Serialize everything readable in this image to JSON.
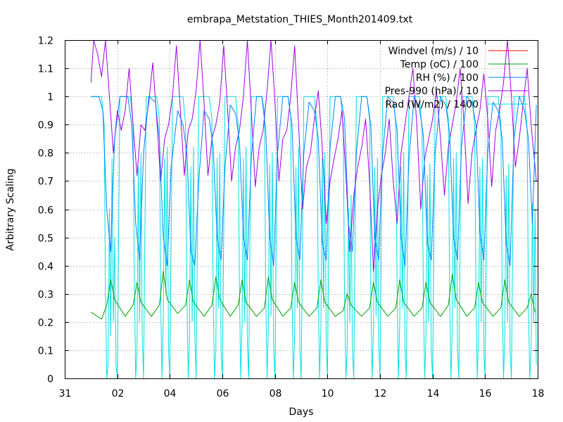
{
  "chart_data": {
    "type": "line",
    "title": "embrapa_Metstation_THIES_Month201409.txt",
    "xlabel": "Days",
    "ylabel": "Arbitrary Scaling",
    "xlim": [
      0,
      18
    ],
    "ylim": [
      0,
      1.2
    ],
    "grid": true,
    "legend_position": "top-right",
    "x_ticks": [
      {
        "value": 0,
        "label": "31"
      },
      {
        "value": 2,
        "label": "02"
      },
      {
        "value": 4,
        "label": "04"
      },
      {
        "value": 6,
        "label": "06"
      },
      {
        "value": 8,
        "label": "08"
      },
      {
        "value": 10,
        "label": "10"
      },
      {
        "value": 12,
        "label": "12"
      },
      {
        "value": 14,
        "label": "14"
      },
      {
        "value": 16,
        "label": "16"
      },
      {
        "value": 18,
        "label": "18"
      }
    ],
    "y_ticks": [
      {
        "value": 0,
        "label": "0"
      },
      {
        "value": 0.1,
        "label": "0.1"
      },
      {
        "value": 0.2,
        "label": "0.2"
      },
      {
        "value": 0.3,
        "label": "0.3"
      },
      {
        "value": 0.4,
        "label": "0.4"
      },
      {
        "value": 0.5,
        "label": "0.5"
      },
      {
        "value": 0.6,
        "label": "0.6"
      },
      {
        "value": 0.7,
        "label": "0.7"
      },
      {
        "value": 0.8,
        "label": "0.8"
      },
      {
        "value": 0.9,
        "label": "0.9"
      },
      {
        "value": 1,
        "label": "1"
      },
      {
        "value": 1.1,
        "label": "1.1"
      },
      {
        "value": 1.2,
        "label": "1.2"
      }
    ],
    "series": [
      {
        "name": "Windvel (m/s) / 10",
        "color": "#ff0000",
        "x": [],
        "y": []
      },
      {
        "name": "Temp (oC) / 100",
        "color": "#00a000",
        "x": [
          1.0,
          1.4,
          1.6,
          1.75,
          1.9,
          2.3,
          2.6,
          2.75,
          2.9,
          3.3,
          3.6,
          3.75,
          3.9,
          4.3,
          4.6,
          4.75,
          4.9,
          5.3,
          5.6,
          5.75,
          5.9,
          6.3,
          6.6,
          6.75,
          6.9,
          7.3,
          7.6,
          7.75,
          7.9,
          8.3,
          8.6,
          8.75,
          8.9,
          9.3,
          9.6,
          9.75,
          9.9,
          10.3,
          10.6,
          10.75,
          10.9,
          11.3,
          11.6,
          11.75,
          11.9,
          12.3,
          12.6,
          12.75,
          12.9,
          13.3,
          13.6,
          13.75,
          13.9,
          14.3,
          14.6,
          14.75,
          14.9,
          15.3,
          15.6,
          15.75,
          15.9,
          16.3,
          16.6,
          16.75,
          16.9,
          17.3,
          17.6,
          17.75,
          17.9
        ],
        "y": [
          0.235,
          0.21,
          0.26,
          0.35,
          0.28,
          0.22,
          0.26,
          0.34,
          0.27,
          0.22,
          0.26,
          0.38,
          0.28,
          0.23,
          0.26,
          0.35,
          0.27,
          0.22,
          0.26,
          0.36,
          0.28,
          0.22,
          0.26,
          0.35,
          0.27,
          0.22,
          0.25,
          0.36,
          0.28,
          0.22,
          0.25,
          0.34,
          0.27,
          0.22,
          0.25,
          0.35,
          0.27,
          0.22,
          0.24,
          0.3,
          0.26,
          0.22,
          0.25,
          0.34,
          0.27,
          0.22,
          0.25,
          0.35,
          0.27,
          0.22,
          0.25,
          0.34,
          0.27,
          0.22,
          0.26,
          0.37,
          0.28,
          0.22,
          0.25,
          0.34,
          0.27,
          0.22,
          0.25,
          0.35,
          0.27,
          0.22,
          0.25,
          0.3,
          0.235
        ]
      },
      {
        "name": "RH (%) / 100",
        "color": "#0080ff",
        "x": [
          1.0,
          1.3,
          1.45,
          1.6,
          1.75,
          1.9,
          2.1,
          2.4,
          2.55,
          2.7,
          2.85,
          3.0,
          3.2,
          3.45,
          3.6,
          3.75,
          3.9,
          4.05,
          4.3,
          4.5,
          4.65,
          4.8,
          4.95,
          5.1,
          5.3,
          5.5,
          5.65,
          5.8,
          5.95,
          6.1,
          6.3,
          6.5,
          6.65,
          6.8,
          6.95,
          7.1,
          7.3,
          7.5,
          7.65,
          7.8,
          7.95,
          8.1,
          8.3,
          8.5,
          8.65,
          8.8,
          8.95,
          9.1,
          9.3,
          9.5,
          9.65,
          9.8,
          9.95,
          10.1,
          10.3,
          10.5,
          10.65,
          10.8,
          10.95,
          11.1,
          11.3,
          11.5,
          11.65,
          11.8,
          11.95,
          12.1,
          12.3,
          12.5,
          12.65,
          12.8,
          12.95,
          13.1,
          13.3,
          13.5,
          13.65,
          13.8,
          13.95,
          14.1,
          14.3,
          14.5,
          14.65,
          14.8,
          14.95,
          15.1,
          15.3,
          15.5,
          15.65,
          15.8,
          15.95,
          16.1,
          16.3,
          16.5,
          16.65,
          16.8,
          16.95,
          17.1,
          17.3,
          17.5,
          17.65,
          17.8,
          17.95
        ],
        "y": [
          1.0,
          1.0,
          0.95,
          0.6,
          0.45,
          0.85,
          1.0,
          1.0,
          0.9,
          0.55,
          0.42,
          0.8,
          1.0,
          0.98,
          0.85,
          0.5,
          0.4,
          0.75,
          0.95,
          0.9,
          0.8,
          0.45,
          0.4,
          0.7,
          0.95,
          0.92,
          0.82,
          0.5,
          0.42,
          0.75,
          0.97,
          0.94,
          0.84,
          0.5,
          0.42,
          0.78,
          1.0,
          1.0,
          0.88,
          0.5,
          0.4,
          0.8,
          1.0,
          1.0,
          0.9,
          0.5,
          0.42,
          0.8,
          0.98,
          0.95,
          0.85,
          0.48,
          0.42,
          0.82,
          1.0,
          1.0,
          0.92,
          0.55,
          0.45,
          0.8,
          1.0,
          1.0,
          0.9,
          0.5,
          0.42,
          0.8,
          1.0,
          0.98,
          0.88,
          0.5,
          0.4,
          0.78,
          1.0,
          0.96,
          0.86,
          0.48,
          0.42,
          0.8,
          1.0,
          0.97,
          0.87,
          0.5,
          0.42,
          0.82,
          1.0,
          0.98,
          0.9,
          0.52,
          0.42,
          0.8,
          0.98,
          0.95,
          0.85,
          0.48,
          0.4,
          0.85,
          1.0,
          0.95,
          0.85,
          0.55,
          0.97
        ]
      },
      {
        "name": "Pres-990 (hPa) / 10",
        "color": "#a000e0",
        "x": [
          1.0,
          1.1,
          1.25,
          1.4,
          1.55,
          1.7,
          1.85,
          2.0,
          2.15,
          2.3,
          2.45,
          2.6,
          2.75,
          2.9,
          3.05,
          3.2,
          3.35,
          3.5,
          3.65,
          3.8,
          3.95,
          4.1,
          4.25,
          4.4,
          4.55,
          4.7,
          4.85,
          5.0,
          5.15,
          5.3,
          5.45,
          5.6,
          5.75,
          5.9,
          6.05,
          6.2,
          6.35,
          6.5,
          6.65,
          6.8,
          6.95,
          7.1,
          7.25,
          7.4,
          7.55,
          7.7,
          7.85,
          8.0,
          8.15,
          8.3,
          8.45,
          8.6,
          8.75,
          8.9,
          9.05,
          9.2,
          9.35,
          9.5,
          9.65,
          9.8,
          9.95,
          10.1,
          10.25,
          10.4,
          10.55,
          10.7,
          10.85,
          11.0,
          11.15,
          11.3,
          11.45,
          11.6,
          11.75,
          11.9,
          12.05,
          12.2,
          12.35,
          12.5,
          12.65,
          12.8,
          12.95,
          13.1,
          13.25,
          13.4,
          13.55,
          13.7,
          13.85,
          14.0,
          14.15,
          14.3,
          14.45,
          14.6,
          14.75,
          14.9,
          15.05,
          15.2,
          15.35,
          15.5,
          15.65,
          15.8,
          15.95,
          16.1,
          16.25,
          16.4,
          16.55,
          16.7,
          16.85,
          17.0,
          17.15,
          17.3,
          17.45,
          17.6,
          17.75,
          17.9,
          17.95
        ],
        "y": [
          1.05,
          1.2,
          1.15,
          1.07,
          1.2,
          1.0,
          0.8,
          0.95,
          0.88,
          0.95,
          1.1,
          0.9,
          0.72,
          0.9,
          0.88,
          0.98,
          1.12,
          0.92,
          0.7,
          0.85,
          0.9,
          1.0,
          1.18,
          0.95,
          0.72,
          0.88,
          0.92,
          1.02,
          1.2,
          0.98,
          0.72,
          0.85,
          0.9,
          0.98,
          1.18,
          0.95,
          0.7,
          0.82,
          0.88,
          1.0,
          1.2,
          0.95,
          0.68,
          0.82,
          0.88,
          1.02,
          1.2,
          0.98,
          0.7,
          0.85,
          0.88,
          1.0,
          1.18,
          0.9,
          0.6,
          0.75,
          0.8,
          0.92,
          1.02,
          0.82,
          0.55,
          0.7,
          0.78,
          0.85,
          0.95,
          0.72,
          0.45,
          0.65,
          0.75,
          0.82,
          0.92,
          0.7,
          0.38,
          0.6,
          0.72,
          0.8,
          0.92,
          0.7,
          0.55,
          0.8,
          0.9,
          1.0,
          1.1,
          0.9,
          0.6,
          0.78,
          0.85,
          0.92,
          1.02,
          0.85,
          0.65,
          0.82,
          0.9,
          0.98,
          1.1,
          0.9,
          0.62,
          0.8,
          0.88,
          0.95,
          1.08,
          0.92,
          0.68,
          0.88,
          0.95,
          1.05,
          1.2,
          1.0,
          0.75,
          0.85,
          0.98,
          1.1,
          0.9,
          0.75,
          0.7
        ]
      },
      {
        "name": "Rad (W/m2) / 1400",
        "color": "#00e0e0",
        "x": [
          1.0,
          1.4,
          1.5,
          1.55,
          1.6,
          1.65,
          1.7,
          1.75,
          1.8,
          1.85,
          1.9,
          1.95,
          2.0,
          2.1,
          2.5,
          2.6,
          2.65,
          2.7,
          2.75,
          2.8,
          2.85,
          2.9,
          2.95,
          3.0,
          3.1,
          3.5,
          3.6,
          3.65,
          3.7,
          3.75,
          3.8,
          3.85,
          3.9,
          3.95,
          4.0,
          4.1,
          4.5,
          4.6,
          4.65,
          4.7,
          4.75,
          4.8,
          4.85,
          4.9,
          4.95,
          5.0,
          5.1,
          5.5,
          5.6,
          5.65,
          5.7,
          5.75,
          5.8,
          5.85,
          5.9,
          5.95,
          6.0,
          6.1,
          6.5,
          6.6,
          6.65,
          6.7,
          6.75,
          6.8,
          6.85,
          6.9,
          6.95,
          7.0,
          7.1,
          7.5,
          7.6,
          7.65,
          7.7,
          7.75,
          7.8,
          7.85,
          7.9,
          7.95,
          8.0,
          8.1,
          8.5,
          8.6,
          8.65,
          8.7,
          8.75,
          8.8,
          8.85,
          8.9,
          8.95,
          9.0,
          9.1,
          9.5,
          9.6,
          9.65,
          9.7,
          9.75,
          9.8,
          9.85,
          9.9,
          9.95,
          10.0,
          10.1,
          10.5,
          10.6,
          10.65,
          10.7,
          10.75,
          10.8,
          10.85,
          10.9,
          10.95,
          11.0,
          11.1,
          11.5,
          11.6,
          11.65,
          11.7,
          11.75,
          11.8,
          11.85,
          11.9,
          11.95,
          12.0,
          12.1,
          12.5,
          12.6,
          12.65,
          12.7,
          12.75,
          12.8,
          12.85,
          12.9,
          12.95,
          13.0,
          13.1,
          13.5,
          13.6,
          13.65,
          13.7,
          13.75,
          13.8,
          13.85,
          13.9,
          13.95,
          14.0,
          14.1,
          14.5,
          14.6,
          14.65,
          14.7,
          14.75,
          14.8,
          14.85,
          14.9,
          14.95,
          15.0,
          15.1,
          15.5,
          15.6,
          15.65,
          15.7,
          15.75,
          15.8,
          15.85,
          15.9,
          15.95,
          16.0,
          16.1,
          16.5,
          16.6,
          16.65,
          16.7,
          16.75,
          16.8,
          16.85,
          16.9,
          16.95,
          17.0,
          17.1,
          17.5,
          17.6,
          17.65,
          17.7,
          17.75,
          17.8,
          17.85,
          17.9,
          17.95
        ],
        "y": [
          1.0,
          1.0,
          0.9,
          0.3,
          0.0,
          0.05,
          0.6,
          0.15,
          0.78,
          0.2,
          0.5,
          0.05,
          0.0,
          1.0,
          1.0,
          0.9,
          0.35,
          0.0,
          0.1,
          0.75,
          0.2,
          0.8,
          0.15,
          0.0,
          1.0,
          1.0,
          0.92,
          0.3,
          0.0,
          0.2,
          0.78,
          0.3,
          0.82,
          0.1,
          0.0,
          1.0,
          1.0,
          0.9,
          0.3,
          0.0,
          0.15,
          0.75,
          0.2,
          0.82,
          0.15,
          0.0,
          1.0,
          1.0,
          0.92,
          0.3,
          0.0,
          0.1,
          0.78,
          0.25,
          0.8,
          0.1,
          0.0,
          1.0,
          1.0,
          0.9,
          0.3,
          0.0,
          0.2,
          0.78,
          0.2,
          0.82,
          0.12,
          0.0,
          1.0,
          1.0,
          0.95,
          0.3,
          0.0,
          0.18,
          0.76,
          0.22,
          0.8,
          0.1,
          0.0,
          1.0,
          1.0,
          0.93,
          0.3,
          0.0,
          0.15,
          0.75,
          0.25,
          0.82,
          0.1,
          0.0,
          1.0,
          1.0,
          0.9,
          0.3,
          0.0,
          0.18,
          0.78,
          0.25,
          0.8,
          0.12,
          0.0,
          1.0,
          1.0,
          0.9,
          0.3,
          0.0,
          0.1,
          0.6,
          0.2,
          0.65,
          0.1,
          0.0,
          1.0,
          1.0,
          0.92,
          0.3,
          0.0,
          0.18,
          0.75,
          0.22,
          0.78,
          0.12,
          0.0,
          1.0,
          1.0,
          0.9,
          0.3,
          0.0,
          0.2,
          0.75,
          0.25,
          0.8,
          0.1,
          0.0,
          1.0,
          1.0,
          0.88,
          0.28,
          0.0,
          0.15,
          0.72,
          0.2,
          0.76,
          0.1,
          0.0,
          1.0,
          1.0,
          0.92,
          0.3,
          0.0,
          0.18,
          0.78,
          0.25,
          0.8,
          0.1,
          0.0,
          1.0,
          1.0,
          0.9,
          0.3,
          0.0,
          0.15,
          0.75,
          0.2,
          0.78,
          0.1,
          0.0,
          1.0,
          1.0,
          0.9,
          0.28,
          0.0,
          0.15,
          0.72,
          0.2,
          0.76,
          0.1,
          0.0,
          1.0,
          1.0,
          0.88,
          0.25,
          0.0,
          0.1,
          0.62,
          0.2,
          0.6,
          0.05
        ]
      }
    ]
  }
}
